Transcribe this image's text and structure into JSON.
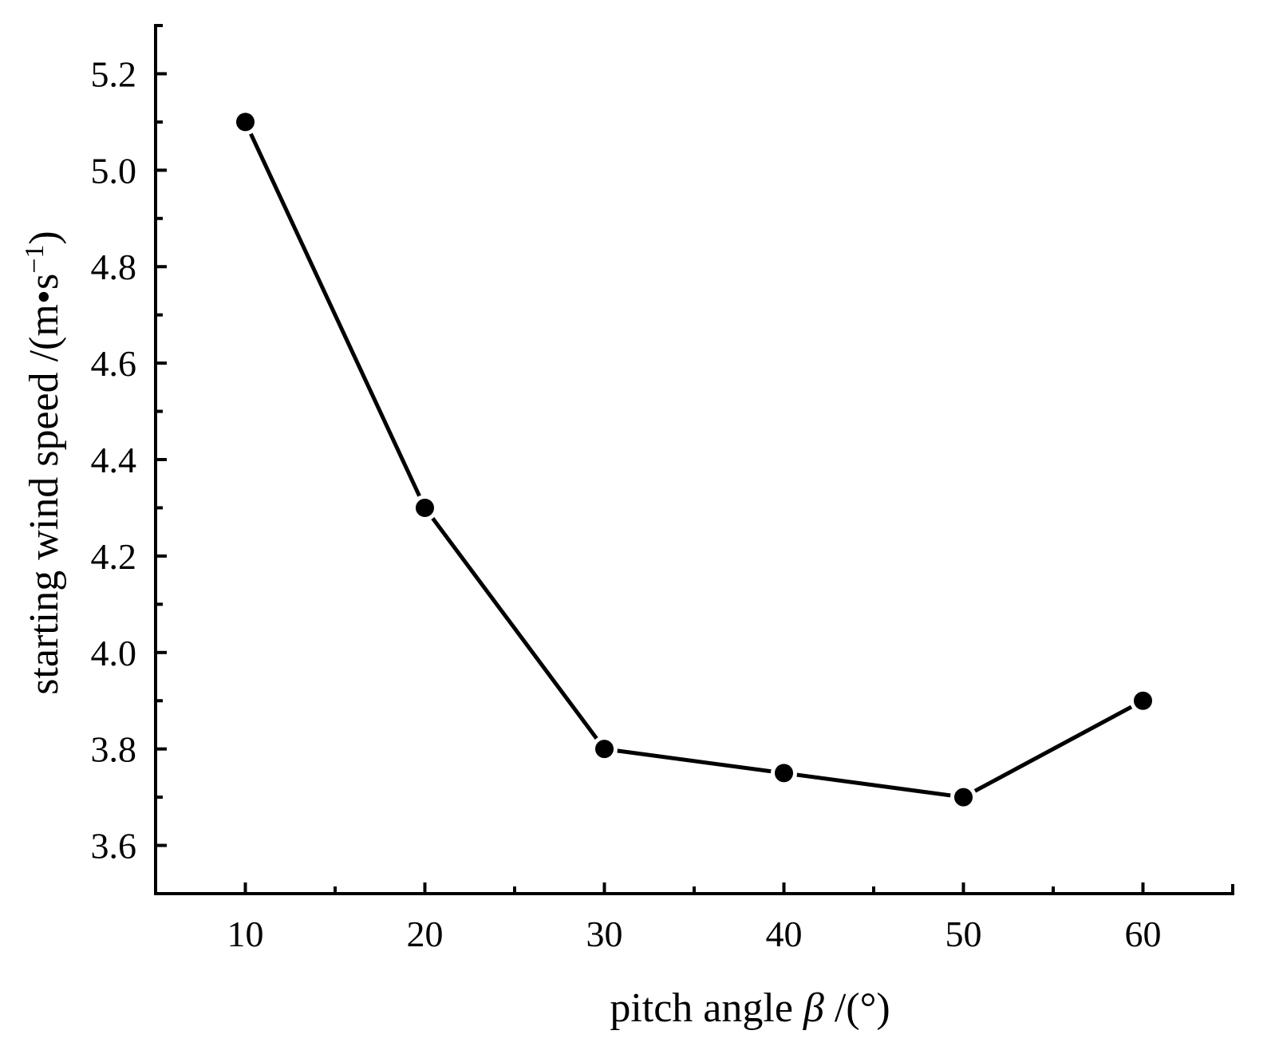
{
  "chart_data": {
    "type": "line",
    "title": "",
    "xlabel_parts": {
      "prefix": "pitch angle ",
      "symbol": "β",
      "suffix": " /(°)"
    },
    "ylabel_parts": {
      "prefix": "starting wind speed /(m•s",
      "superscript": "−1",
      "suffix": ")"
    },
    "xlim": [
      5,
      65
    ],
    "ylim": [
      3.5,
      5.3
    ],
    "x_ticks": [
      10,
      20,
      30,
      40,
      50,
      60
    ],
    "x_tick_labels": [
      "10",
      "20",
      "30",
      "40",
      "50",
      "60"
    ],
    "x_minor_ticks": [
      15,
      25,
      35,
      45,
      55
    ],
    "y_ticks": [
      3.6,
      3.8,
      4.0,
      4.2,
      4.4,
      4.6,
      4.8,
      5.0,
      5.2
    ],
    "y_tick_labels": [
      "3.6",
      "3.8",
      "4.0",
      "4.2",
      "4.4",
      "4.6",
      "4.8",
      "5.0",
      "5.2"
    ],
    "y_minor_ticks": [
      3.7,
      3.9,
      4.1,
      4.3,
      4.5,
      4.7,
      4.9,
      5.1
    ],
    "grid": false,
    "legend": "none",
    "series": [
      {
        "x": [
          10,
          20,
          30,
          40,
          50,
          60
        ],
        "y": [
          5.1,
          4.3,
          3.8,
          3.75,
          3.7,
          3.9
        ],
        "color": "#000000",
        "marker": "circle"
      }
    ]
  }
}
